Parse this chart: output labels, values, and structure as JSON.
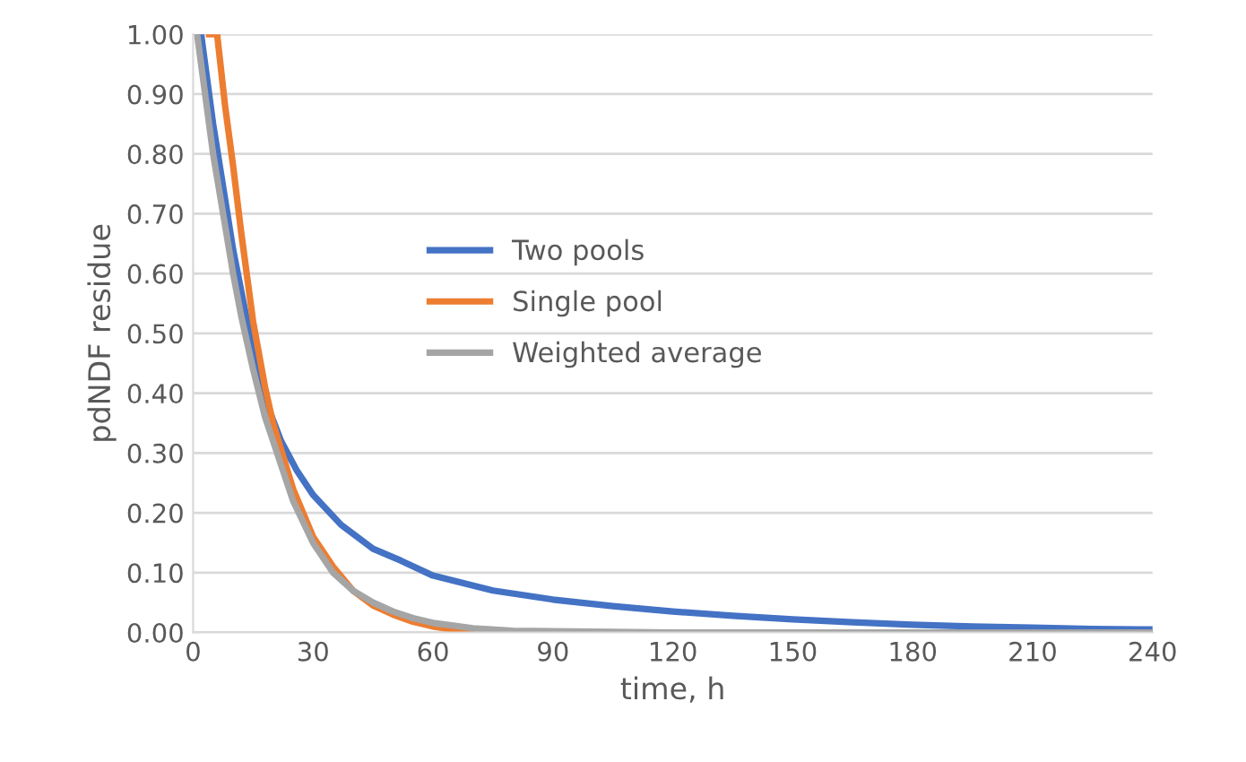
{
  "chart_data": {
    "type": "line",
    "xlabel": "time, h",
    "ylabel": "pdNDF residue",
    "xlim": [
      0,
      240
    ],
    "xticks": [
      0,
      30,
      60,
      90,
      120,
      150,
      180,
      210,
      240
    ],
    "ylim": [
      0,
      1
    ],
    "yticks": [
      {
        "value": 0,
        "label": "0.00"
      },
      {
        "value": 0.1,
        "label": "0.10"
      },
      {
        "value": 0.2,
        "label": "0.20"
      },
      {
        "value": 0.3,
        "label": "0.30"
      },
      {
        "value": 0.4,
        "label": "0.40"
      },
      {
        "value": 0.5,
        "label": "0.50"
      },
      {
        "value": 0.6,
        "label": "0.60"
      },
      {
        "value": 0.7,
        "label": "0.70"
      },
      {
        "value": 0.8,
        "label": "0.80"
      },
      {
        "value": 0.9,
        "label": "0.90"
      },
      {
        "value": 1,
        "label": "1.00"
      }
    ],
    "grid": "y",
    "legend": "center",
    "marker": "none",
    "line_style": "solid",
    "series": [
      {
        "name": "Two pools",
        "color": "#4472c4",
        "x": [
          2,
          5,
          10,
          15,
          18,
          22,
          26,
          30,
          37,
          45,
          52,
          60,
          75,
          90,
          105,
          120,
          135,
          150,
          165,
          180,
          195,
          210,
          225,
          240
        ],
        "values": [
          1,
          0.85,
          0.64,
          0.47,
          0.39,
          0.32,
          0.27,
          0.23,
          0.18,
          0.14,
          0.12,
          0.095,
          0.07,
          0.055,
          0.044,
          0.035,
          0.028,
          0.022,
          0.017,
          0.013,
          0.01,
          0.008,
          0.006,
          0.005
        ]
      },
      {
        "name": "Single pool",
        "color": "#ed7d31",
        "x": [
          4,
          6,
          8,
          10,
          12,
          15,
          18,
          20,
          25,
          30,
          35,
          40,
          45,
          50,
          55,
          60,
          65,
          70
        ],
        "values": [
          1,
          1,
          0.88,
          0.78,
          0.67,
          0.52,
          0.41,
          0.35,
          0.24,
          0.16,
          0.11,
          0.07,
          0.045,
          0.03,
          0.018,
          0.01,
          0.005,
          0.002
        ]
      },
      {
        "name": "Weighted average",
        "color": "#a5a5a5",
        "x": [
          1,
          3,
          5,
          8,
          10,
          12,
          15,
          18,
          20,
          25,
          30,
          35,
          40,
          45,
          50,
          55,
          60,
          70,
          80,
          90,
          120,
          150,
          180,
          210,
          240
        ],
        "values": [
          1,
          0.9,
          0.8,
          0.68,
          0.6,
          0.53,
          0.44,
          0.36,
          0.32,
          0.22,
          0.15,
          0.1,
          0.07,
          0.05,
          0.035,
          0.024,
          0.016,
          0.007,
          0.003,
          0.002,
          0,
          0,
          0,
          0,
          0
        ]
      }
    ]
  }
}
